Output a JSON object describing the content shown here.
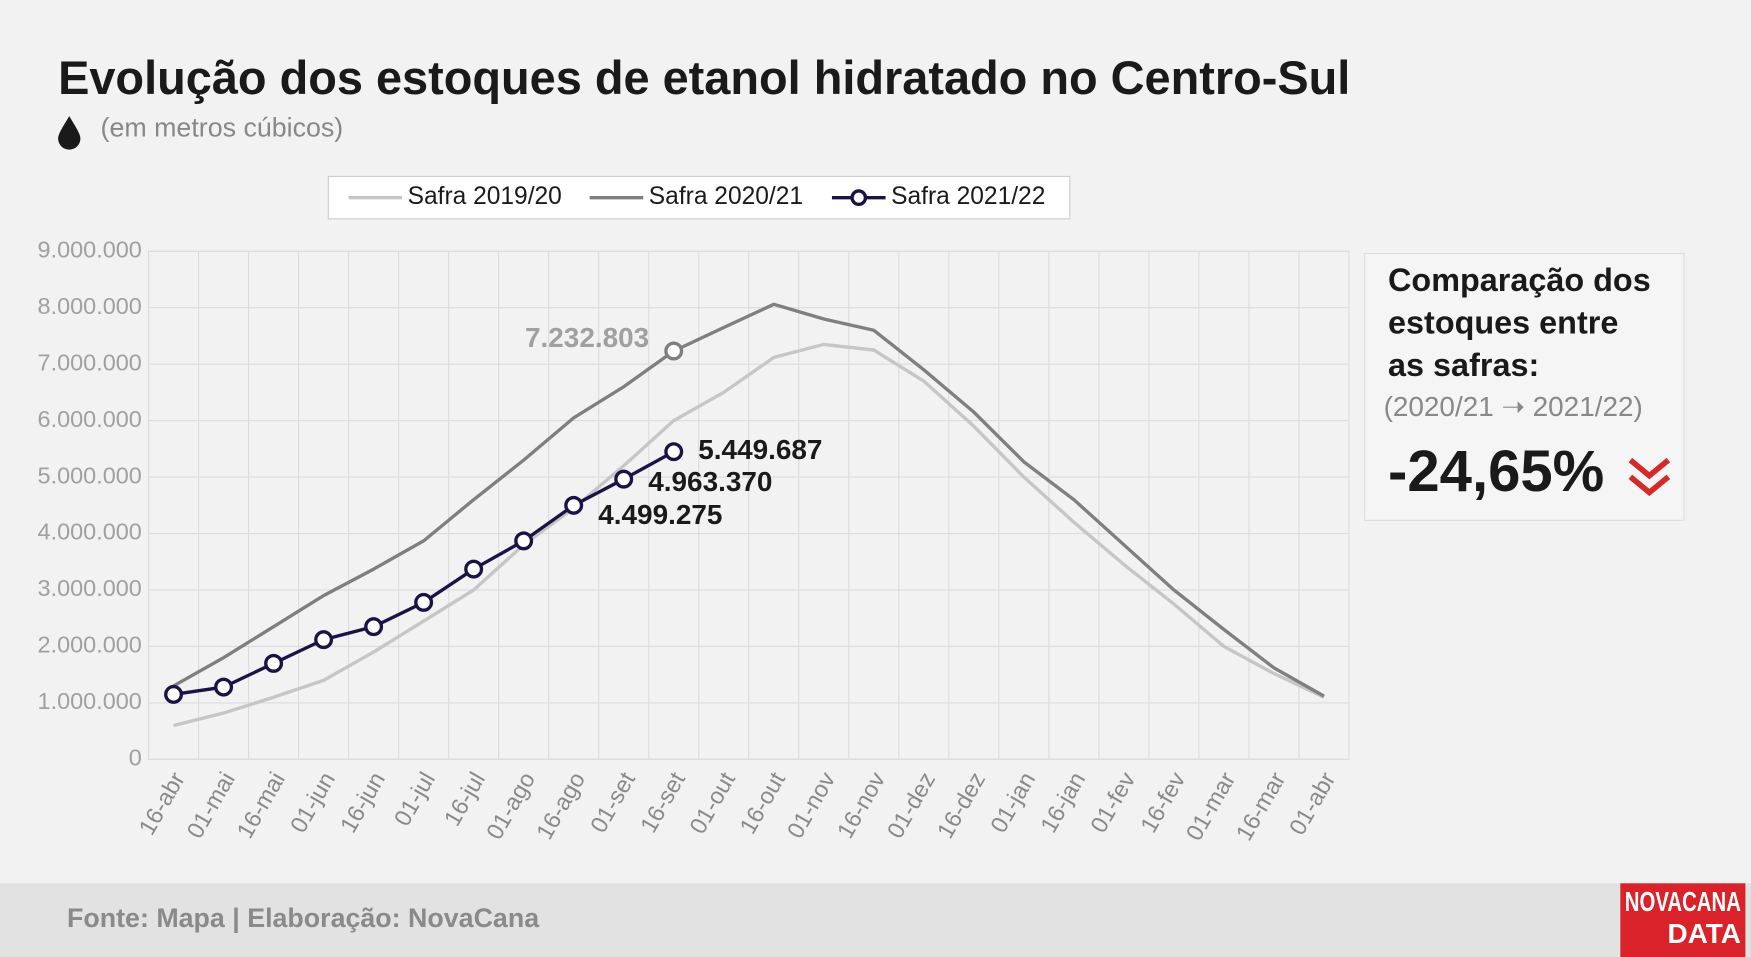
{
  "chart_data": {
    "type": "line",
    "title": "Evolução dos estoques de etanol hidratado no Centro-Sul",
    "subtitle": "(em metros cúbicos)",
    "categories": [
      "16-abr",
      "01-mai",
      "16-mai",
      "01-jun",
      "16-jun",
      "01-jul",
      "16-jul",
      "01-ago",
      "16-ago",
      "01-set",
      "16-set",
      "01-out",
      "16-out",
      "01-nov",
      "16-nov",
      "01-dez",
      "16-dez",
      "01-jan",
      "16-jan",
      "01-fev",
      "16-fev",
      "01-mar",
      "16-mar",
      "01-abr"
    ],
    "series": [
      {
        "name": "Safra 2019/20",
        "color": "#c6c6c6",
        "values": [
          600000,
          820000,
          1100000,
          1400000,
          1900000,
          2450000,
          3000000,
          3800000,
          4450000,
          5200000,
          6000000,
          6500000,
          7120000,
          7350000,
          7250000,
          6700000,
          5900000,
          5000000,
          4200000,
          3450000,
          2750000,
          2000000,
          1520000,
          1100000
        ]
      },
      {
        "name": "Safra 2020/21",
        "color": "#7f7f7f",
        "values": [
          1300000,
          1800000,
          2350000,
          2900000,
          3370000,
          3870000,
          4600000,
          5300000,
          6050000,
          6600000,
          7232803,
          7650000,
          8060000,
          7800000,
          7600000,
          6900000,
          6150000,
          5270000,
          4600000,
          3800000,
          3000000,
          2300000,
          1620000,
          1120000
        ],
        "value_labels": [
          null,
          null,
          null,
          null,
          null,
          null,
          null,
          null,
          null,
          null,
          "7.232.803",
          null,
          null,
          null,
          null,
          null,
          null,
          null,
          null,
          null,
          null,
          null,
          null,
          null
        ]
      },
      {
        "name": "Safra 2021/22",
        "color": "#1a1446",
        "markers": true,
        "values": [
          1150000,
          1280000,
          1700000,
          2120000,
          2350000,
          2780000,
          3370000,
          3870000,
          4499275,
          4963370,
          5449687,
          null,
          null,
          null,
          null,
          null,
          null,
          null,
          null,
          null,
          null,
          null,
          null,
          null
        ],
        "value_labels": [
          null,
          null,
          null,
          null,
          null,
          null,
          null,
          null,
          "4.499.275",
          "4.963.370",
          "5.449.687",
          null,
          null,
          null,
          null,
          null,
          null,
          null,
          null,
          null,
          null,
          null,
          null,
          null
        ]
      }
    ],
    "ylim": [
      0,
      9000000
    ],
    "yticks": [
      0,
      {
        "value": 1000000,
        "label": "1.000.000"
      },
      {
        "value": 2000000,
        "label": "2.000.000"
      },
      {
        "value": 3000000,
        "label": "3.000.000"
      },
      {
        "value": 4000000,
        "label": "4.000.000"
      },
      {
        "value": 5000000,
        "label": "5.000.000"
      },
      {
        "value": 6000000,
        "label": "6.000.000"
      },
      {
        "value": 7000000,
        "label": "7.000.000"
      },
      {
        "value": 8000000,
        "label": "8.000.000"
      },
      {
        "value": 9000000,
        "label": "9.000.000"
      }
    ],
    "grid": true,
    "legend": "top"
  },
  "panel": {
    "title_lines": [
      "Comparação dos",
      "estoques entre",
      "as safras:"
    ],
    "subtitle": "(2020/21 ➝ 2021/22)",
    "value": "-24,65%"
  },
  "footer": {
    "source": "Fonte: Mapa | Elaboração: NovaCana",
    "logo": [
      "NOVACANA",
      "DATA"
    ]
  }
}
